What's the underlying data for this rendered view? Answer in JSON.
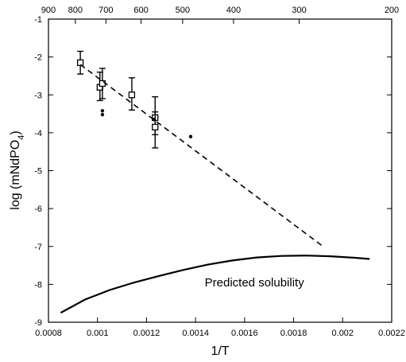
{
  "chart_data": {
    "type": "scatter",
    "xlabel": "1/T",
    "ylabel_main": "log (mNdPO",
    "ylabel_sub": "4",
    "ylabel_close": ")",
    "xlim": [
      0.0008,
      0.0022
    ],
    "ylim": [
      -9,
      -1
    ],
    "x_ticks": [
      {
        "value": 0.0008,
        "label": "0.0008"
      },
      {
        "value": 0.001,
        "label": "0.001"
      },
      {
        "value": 0.0012,
        "label": "0.0012"
      },
      {
        "value": 0.0014,
        "label": "0.0014"
      },
      {
        "value": 0.0016,
        "label": "0.0016"
      },
      {
        "value": 0.0018,
        "label": "0.0018"
      },
      {
        "value": 0.002,
        "label": "0.002"
      },
      {
        "value": 0.0022,
        "label": "0.0022"
      }
    ],
    "y_ticks": [
      {
        "value": -1,
        "label": "-1"
      },
      {
        "value": -2,
        "label": "-2"
      },
      {
        "value": -3,
        "label": "-3"
      },
      {
        "value": -4,
        "label": "-4"
      },
      {
        "value": -5,
        "label": "-5"
      },
      {
        "value": -6,
        "label": "-6"
      },
      {
        "value": -7,
        "label": "-7"
      },
      {
        "value": -8,
        "label": "-8"
      },
      {
        "value": -9,
        "label": "-9"
      }
    ],
    "top_axis": {
      "note": "Temperature scale (top axis)",
      "ticks": [
        {
          "value": 0.001111,
          "label": "900"
        },
        {
          "value": 0.00125,
          "label": "800"
        },
        {
          "value": 0.001429,
          "label": "700"
        },
        {
          "value": 0.001667,
          "label": "600"
        },
        {
          "value": 0.002,
          "label": "500"
        },
        {
          "value": 0.0025,
          "label": "400"
        },
        {
          "value": 0.003333,
          "label": "300"
        },
        {
          "value": 0.005,
          "label": "200"
        }
      ]
    },
    "series": [
      {
        "kind": "square-with-errorbars",
        "points": [
          {
            "x": 0.00093,
            "y": -2.15,
            "err_low": -2.45,
            "err_high": -1.85
          },
          {
            "x": 0.00101,
            "y": -2.8,
            "err_low": -3.15,
            "err_high": -2.4
          },
          {
            "x": 0.00102,
            "y": -2.7,
            "err_low": -3.1,
            "err_high": -2.3
          },
          {
            "x": 0.00114,
            "y": -3.0,
            "err_low": -3.4,
            "err_high": -2.55
          },
          {
            "x": 0.001235,
            "y": -3.6,
            "err_low": -4.05,
            "err_high": -3.05
          },
          {
            "x": 0.001235,
            "y": -3.85,
            "err_low": -4.4,
            "err_high": -3.45
          }
        ]
      },
      {
        "kind": "dot",
        "points": [
          {
            "x": 0.00102,
            "y": -3.42
          },
          {
            "x": 0.00102,
            "y": -3.52
          },
          {
            "x": 0.00123,
            "y": -3.65
          },
          {
            "x": 0.00138,
            "y": -4.1
          }
        ]
      },
      {
        "kind": "dashed-fit",
        "points": [
          {
            "x": 0.00093,
            "y": -2.2
          },
          {
            "x": 0.00192,
            "y": -7.0
          }
        ]
      },
      {
        "kind": "solid-curve",
        "points": [
          {
            "x": 0.00085,
            "y": -8.75
          },
          {
            "x": 0.00095,
            "y": -8.4
          },
          {
            "x": 0.00105,
            "y": -8.15
          },
          {
            "x": 0.00115,
            "y": -7.95
          },
          {
            "x": 0.00125,
            "y": -7.78
          },
          {
            "x": 0.00135,
            "y": -7.62
          },
          {
            "x": 0.00145,
            "y": -7.48
          },
          {
            "x": 0.00155,
            "y": -7.37
          },
          {
            "x": 0.00165,
            "y": -7.29
          },
          {
            "x": 0.00175,
            "y": -7.25
          },
          {
            "x": 0.00185,
            "y": -7.24
          },
          {
            "x": 0.00195,
            "y": -7.26
          },
          {
            "x": 0.00205,
            "y": -7.3
          },
          {
            "x": 0.00211,
            "y": -7.33
          }
        ]
      }
    ],
    "annotations": [
      {
        "text": "Predicted solubility",
        "x": 0.00164,
        "y": -7.95
      }
    ]
  }
}
